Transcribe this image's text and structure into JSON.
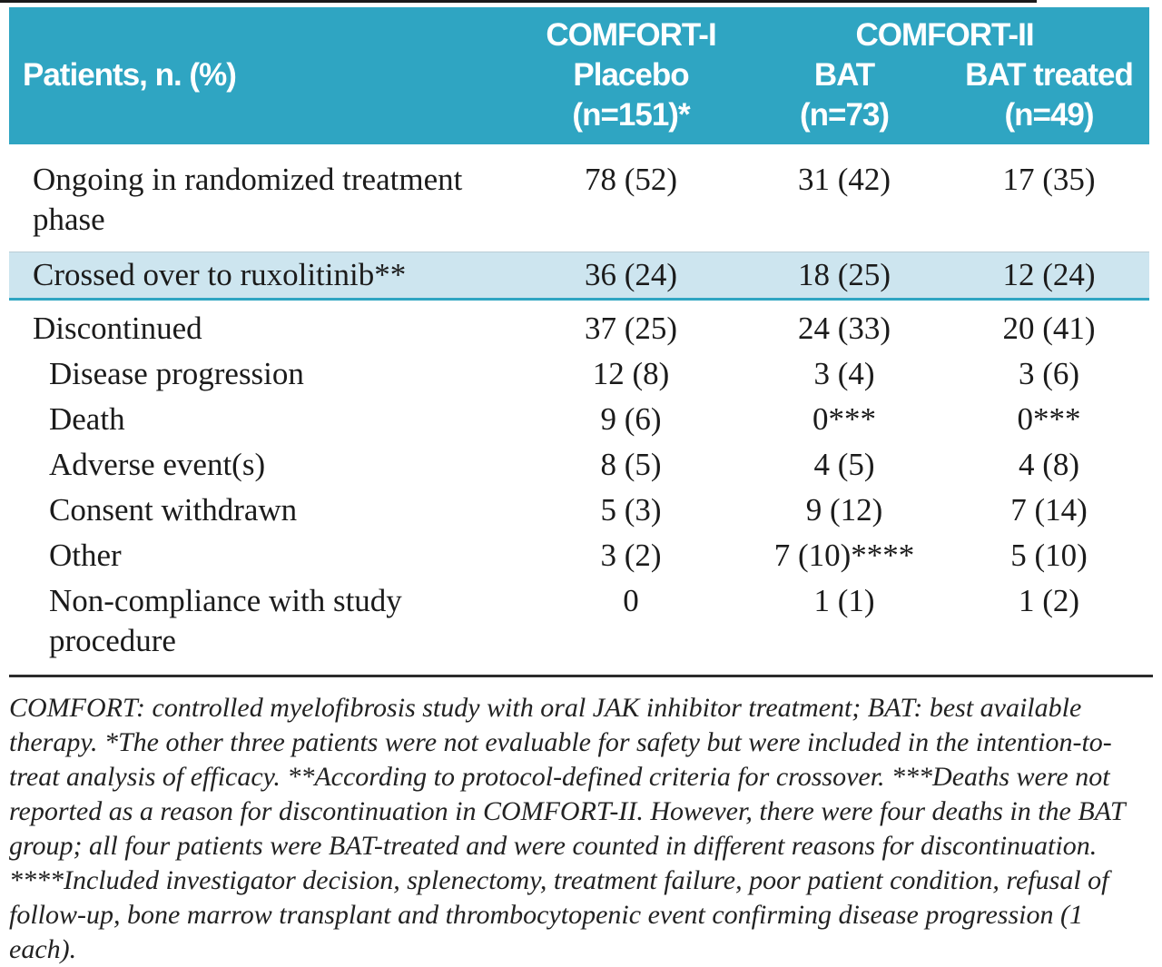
{
  "colors": {
    "header_bg": "#2fa5c2",
    "highlight_bg": "#cde5ef",
    "highlight_border": "#2fa5c2",
    "rule": "#2b2b2b",
    "text": "#1b1b1b"
  },
  "table": {
    "title_cell": "Patients, n. (%)",
    "groups": [
      {
        "label": "COMFORT-I"
      },
      {
        "label": "COMFORT-II"
      }
    ],
    "columns": [
      {
        "treatment": "Placebo",
        "n": "(n=151)*"
      },
      {
        "treatment": "BAT",
        "n": "(n=73)"
      },
      {
        "treatment": "BAT treated",
        "n": "(n=49)"
      }
    ],
    "rows": [
      {
        "label": "Ongoing in randomized treatment phase",
        "values": [
          "78 (52)",
          "31 (42)",
          "17 (35)"
        ],
        "indent": false,
        "highlight": false
      },
      {
        "label": "Crossed over to ruxolitinib**",
        "values": [
          "36 (24)",
          "18 (25)",
          "12 (24)"
        ],
        "indent": false,
        "highlight": true
      },
      {
        "label": "Discontinued",
        "values": [
          "37 (25)",
          "24 (33)",
          "20 (41)"
        ],
        "indent": false,
        "highlight": false
      },
      {
        "label": "Disease progression",
        "values": [
          "12 (8)",
          "3 (4)",
          "3 (6)"
        ],
        "indent": true,
        "highlight": false
      },
      {
        "label": "Death",
        "values": [
          "9 (6)",
          "0***",
          "0***"
        ],
        "indent": true,
        "highlight": false
      },
      {
        "label": "Adverse event(s)",
        "values": [
          "8 (5)",
          "4 (5)",
          "4 (8)"
        ],
        "indent": true,
        "highlight": false
      },
      {
        "label": "Consent withdrawn",
        "values": [
          "5 (3)",
          "9 (12)",
          "7 (14)"
        ],
        "indent": true,
        "highlight": false
      },
      {
        "label": "Other",
        "values": [
          "3 (2)",
          "7 (10)****",
          "5 (10)"
        ],
        "indent": true,
        "highlight": false
      },
      {
        "label": "Non-compliance with study procedure",
        "values": [
          "0",
          "1 (1)",
          "1 (2)"
        ],
        "indent": true,
        "highlight": false
      }
    ]
  },
  "footnote": "COMFORT: controlled myelofibrosis study with oral JAK inhibitor treatment; BAT: best available therapy. *The other three patients were not evaluable for safety but were included in the intention-to-treat analysis of efficacy. **According to protocol-defined criteria for crossover. ***Deaths were not reported as a reason for discontinuation in COMFORT-II. However, there were four deaths in the BAT group; all four patients were BAT-treated and were counted in different reasons for discontinuation. ****Included investigator decision, splenectomy, treatment failure, poor patient condition, refusal of follow-up, bone marrow transplant and thrombocytopenic event confirming disease progression (1 each)."
}
